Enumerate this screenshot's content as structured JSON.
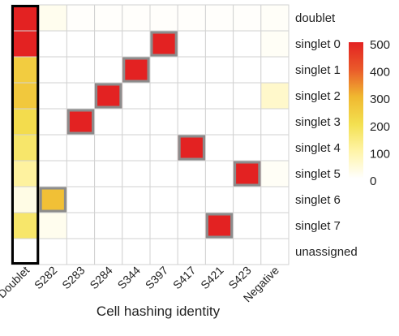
{
  "chart_data": {
    "type": "heatmap",
    "title": "",
    "xlabel": "Cell hashing identity",
    "ylabel": "",
    "columns": [
      "Doublet",
      "S282",
      "S283",
      "S284",
      "S344",
      "S397",
      "S417",
      "S421",
      "S423",
      "Negative"
    ],
    "rows": [
      "doublet",
      "singlet 0",
      "singlet 1",
      "singlet 2",
      "singlet 3",
      "singlet 4",
      "singlet 5",
      "singlet 6",
      "singlet 7",
      "unassigned"
    ],
    "values": [
      [
        500,
        20,
        5,
        5,
        5,
        5,
        5,
        5,
        5,
        8
      ],
      [
        500,
        0,
        0,
        0,
        0,
        500,
        0,
        0,
        0,
        10
      ],
      [
        250,
        0,
        0,
        0,
        500,
        0,
        0,
        0,
        0,
        0
      ],
      [
        260,
        0,
        0,
        500,
        0,
        0,
        0,
        0,
        0,
        60
      ],
      [
        210,
        0,
        500,
        0,
        0,
        0,
        0,
        0,
        0,
        0
      ],
      [
        170,
        0,
        0,
        0,
        0,
        0,
        500,
        0,
        0,
        0
      ],
      [
        110,
        0,
        0,
        0,
        0,
        0,
        0,
        0,
        500,
        10
      ],
      [
        30,
        280,
        0,
        0,
        0,
        0,
        0,
        0,
        0,
        0
      ],
      [
        170,
        20,
        0,
        0,
        0,
        0,
        0,
        500,
        0,
        0
      ],
      [
        0,
        0,
        0,
        0,
        0,
        0,
        0,
        0,
        0,
        0
      ]
    ],
    "highlighted": [
      [
        0,
        0
      ],
      [
        1,
        0
      ],
      [
        1,
        5
      ],
      [
        2,
        4
      ],
      [
        3,
        3
      ],
      [
        4,
        2
      ],
      [
        5,
        6
      ],
      [
        6,
        8
      ],
      [
        7,
        1
      ],
      [
        8,
        7
      ]
    ],
    "highlight_column": 0,
    "colorbar": {
      "min": 0,
      "max": 500,
      "ticks": [
        0,
        100,
        200,
        300,
        400,
        500
      ],
      "colors": [
        "#ffffff",
        "#fff4a8",
        "#f3e050",
        "#f0b830",
        "#ea5a2a",
        "#e32222"
      ]
    },
    "grid": true,
    "highlight_border_color": "#8c8c8c",
    "column_box_color": "#000000"
  }
}
